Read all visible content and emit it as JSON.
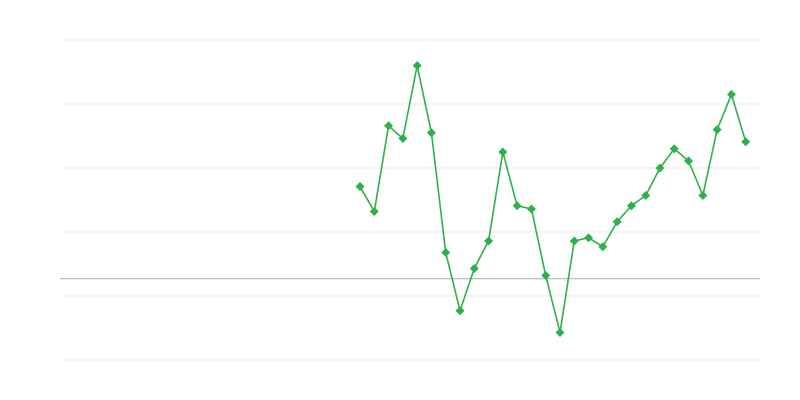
{
  "chart_data": {
    "type": "line",
    "title": "",
    "xlabel": "",
    "ylabel": "",
    "xlim": [
      0,
      49
    ],
    "ylim": [
      -1.27,
      3.73
    ],
    "gridlines": [
      -1.27,
      -0.27,
      0.73,
      1.73,
      2.73,
      3.73
    ],
    "baseline": 0,
    "grid": true,
    "legend": "none",
    "marker": "diamond",
    "colors": {
      "series": "#2eb14b",
      "grid": "#ebebeb",
      "baseline": "#aaaaaa"
    },
    "x": [
      21,
      22,
      23,
      24,
      25,
      26,
      27,
      28,
      29,
      30,
      31,
      32,
      33,
      34,
      35,
      36,
      37,
      38,
      39,
      40,
      41,
      42,
      43,
      44,
      45,
      46,
      47,
      48
    ],
    "series": [
      {
        "values": [
          1.44,
          1.05,
          2.39,
          2.19,
          3.33,
          2.28,
          0.41,
          -0.5,
          0.16,
          0.59,
          1.98,
          1.14,
          1.09,
          0.05,
          -0.84,
          0.59,
          0.64,
          0.5,
          0.89,
          1.14,
          1.3,
          1.73,
          2.03,
          1.84,
          1.3,
          2.33,
          2.88,
          2.14
        ]
      }
    ]
  }
}
